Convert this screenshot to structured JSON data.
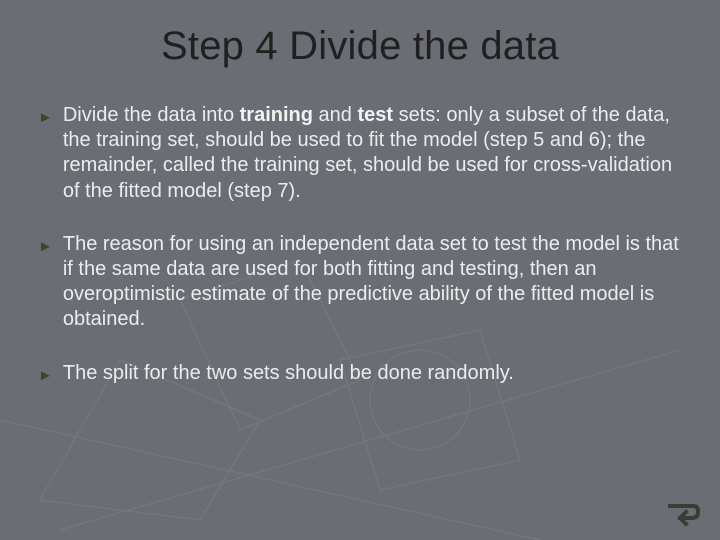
{
  "slide": {
    "background_color": "#6b6d74",
    "title": "Step 4 Divide the data",
    "title_color": "#202020",
    "title_fontsize": 40,
    "body_color": "#ececec",
    "body_fontsize": 20,
    "bullet_marker_glyph": "►",
    "bullet_marker_color": "#3a4a28",
    "bullets": [
      {
        "text_html": "Divide the data into <b>training</b> and <b>test</b> sets: only a subset of the data, the training set, should be used to fit the model (step 5 and 6); the remainder, called the training set, should be used for cross-validation of the fitted model (step 7)."
      },
      {
        "text_html": "The reason for using an independent data set to test the model is that if the same data are used for both fitting and testing, then an overoptimistic estimate of the predictive ability of the fitted model is obtained."
      },
      {
        "text_html": "The split for the two sets should be done randomly."
      }
    ],
    "corner_icon": {
      "name": "return-arrow-icon",
      "stroke_color": "#3a3d34",
      "stroke_width": 4
    },
    "background_decor": {
      "stroke_color": "#ffffff",
      "opacity": 0.06
    }
  }
}
